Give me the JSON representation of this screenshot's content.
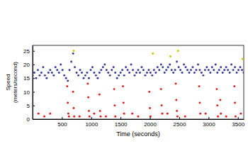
{
  "chart_data": {
    "type": "scatter",
    "xlabel": "Time (seconds)",
    "ylabel": [
      "Speed",
      "(meters/second)"
    ],
    "xlim": [
      0,
      3600
    ],
    "xticks": [
      500,
      1000,
      1500,
      2000,
      2500,
      3000,
      3500
    ],
    "ylim": [
      0,
      27
    ],
    "yticks": [
      0,
      5,
      10,
      15,
      20,
      25
    ],
    "grid": false,
    "series": [
      {
        "color": "#3a3a9a",
        "marker": "circle",
        "x": [
          0,
          30,
          60,
          90,
          120,
          150,
          180,
          210,
          240,
          270,
          300,
          330,
          360,
          390,
          420,
          450,
          480,
          510,
          540,
          570,
          600,
          630,
          660,
          690,
          720,
          750,
          780,
          810,
          840,
          870,
          900,
          930,
          960,
          990,
          1020,
          1050,
          1080,
          1110,
          1140,
          1170,
          1200,
          1230,
          1260,
          1290,
          1320,
          1350,
          1380,
          1410,
          1440,
          1470,
          1500,
          1530,
          1560,
          1590,
          1620,
          1650,
          1680,
          1710,
          1740,
          1770,
          1800,
          1830,
          1860,
          1890,
          1920,
          1950,
          1980,
          2010,
          2040,
          2070,
          2100,
          2130,
          2160,
          2190,
          2220,
          2250,
          2280,
          2310,
          2340,
          2370,
          2400,
          2430,
          2460,
          2490,
          2520,
          2550,
          2580,
          2610,
          2640,
          2670,
          2700,
          2730,
          2760,
          2790,
          2820,
          2850,
          2880,
          2910,
          2940,
          2970,
          3000,
          3030,
          3060,
          3090,
          3120,
          3150,
          3180,
          3210,
          3240,
          3270,
          3300,
          3330,
          3360,
          3390,
          3420,
          3450,
          3480,
          3510,
          3540,
          3570,
          3600
        ],
        "values": [
          16,
          17,
          15,
          18,
          16,
          17,
          19,
          16,
          15,
          17,
          18,
          17,
          16,
          19,
          18,
          17,
          20,
          18,
          16,
          15,
          14,
          18,
          21,
          24,
          19,
          17,
          16,
          18,
          17,
          15,
          16,
          17,
          15,
          18,
          19,
          17,
          16,
          15,
          17,
          18,
          19,
          20,
          18,
          17,
          16,
          18,
          19,
          17,
          15,
          16,
          17,
          18,
          16,
          19,
          18,
          17,
          20,
          18,
          16,
          17,
          18,
          17,
          19,
          18,
          16,
          17,
          18,
          17,
          16,
          18,
          17,
          19,
          18,
          20,
          19,
          17,
          18,
          19,
          20,
          18,
          17,
          18,
          21,
          19,
          18,
          17,
          20,
          19,
          18,
          17,
          18,
          19,
          17,
          18,
          20,
          18,
          17,
          16,
          18,
          19,
          18,
          17,
          19,
          18,
          20,
          17,
          18,
          19,
          17,
          18,
          19,
          18,
          17,
          20,
          18,
          19,
          17,
          18,
          19,
          18,
          17
        ]
      },
      {
        "color": "#e02020",
        "marker": "circle",
        "x": [
          100,
          200,
          300,
          590,
          600,
          610,
          620,
          690,
          700,
          710,
          800,
          940,
          950,
          960,
          970,
          1050,
          1140,
          1150,
          1160,
          1250,
          1390,
          1400,
          1410,
          1540,
          1550,
          1560,
          1700,
          1800,
          1990,
          2000,
          2010,
          2190,
          2200,
          2210,
          2300,
          2440,
          2450,
          2460,
          2470,
          2600,
          2840,
          2850,
          2860,
          2950,
          3140,
          3150,
          3160,
          3200,
          3210,
          3300,
          3440,
          3450,
          3460,
          3550
        ],
        "values": [
          2,
          1,
          2,
          12,
          6,
          2,
          1,
          10,
          4,
          1,
          1,
          13,
          8,
          3,
          1,
          2,
          9,
          3,
          1,
          1,
          11,
          5,
          1,
          12,
          6,
          2,
          2,
          1,
          10,
          4,
          1,
          11,
          5,
          2,
          2,
          13,
          7,
          3,
          1,
          1,
          12,
          6,
          2,
          2,
          11,
          5,
          1,
          7,
          2,
          1,
          12,
          6,
          1,
          2
        ]
      },
      {
        "color": "#c8c800",
        "marker": "circle",
        "x": [
          700,
          2050,
          2350,
          2480,
          3580
        ],
        "values": [
          25,
          24,
          23,
          25,
          22
        ]
      }
    ]
  }
}
